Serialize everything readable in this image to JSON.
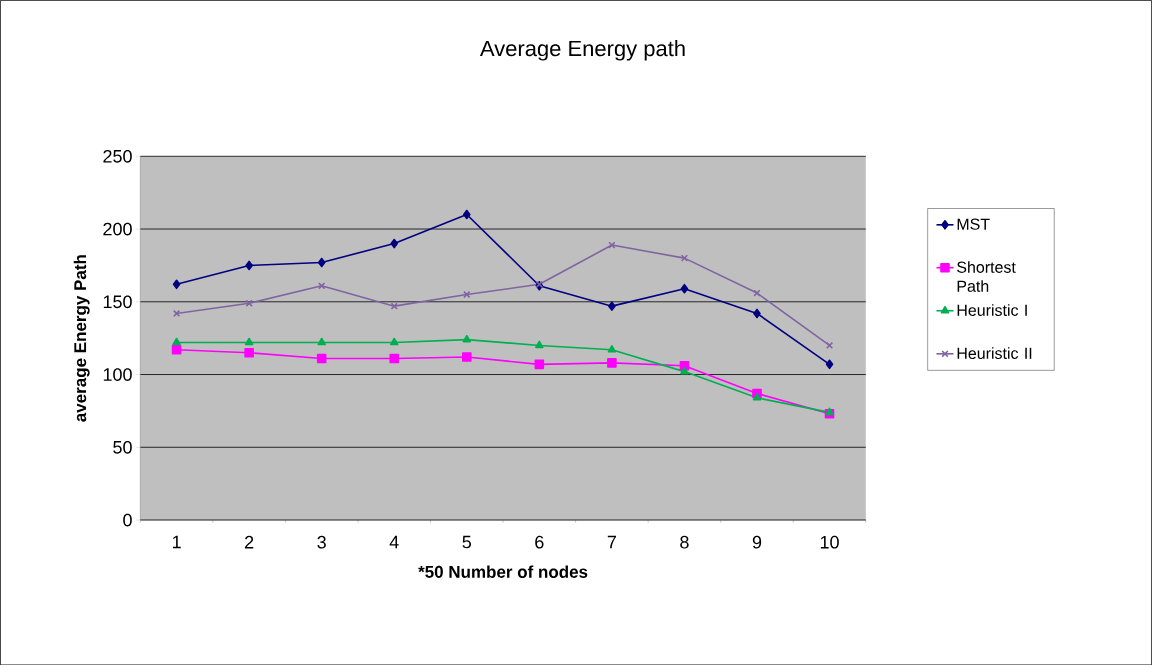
{
  "chart_data": {
    "type": "line",
    "title": "Average Energy path",
    "xlabel": "*50 Number of nodes",
    "ylabel": "average Energy Path",
    "categories": [
      "1",
      "2",
      "3",
      "4",
      "5",
      "6",
      "7",
      "8",
      "9",
      "10"
    ],
    "ylim": [
      0,
      250
    ],
    "yticks": [
      0,
      50,
      100,
      150,
      200,
      250
    ],
    "grid": "y",
    "legend": "right",
    "line_style": "solid",
    "series": [
      {
        "name": "MST",
        "color": "#000080",
        "marker": "diamond",
        "values": [
          162,
          175,
          177,
          190,
          210,
          161,
          147,
          159,
          142,
          107
        ]
      },
      {
        "name": "Shortest Path",
        "color": "#ff00ff",
        "marker": "square",
        "values": [
          117,
          115,
          111,
          111,
          112,
          107,
          108,
          106,
          87,
          73
        ]
      },
      {
        "name": "Heuristic I",
        "color": "#00b050",
        "marker": "triangle",
        "values": [
          122,
          122,
          122,
          122,
          124,
          120,
          117,
          102,
          84,
          74
        ]
      },
      {
        "name": "Heuristic II",
        "color": "#8064a2",
        "marker": "cross",
        "values": [
          142,
          149,
          161,
          147,
          155,
          162,
          189,
          180,
          156,
          120
        ]
      }
    ]
  }
}
